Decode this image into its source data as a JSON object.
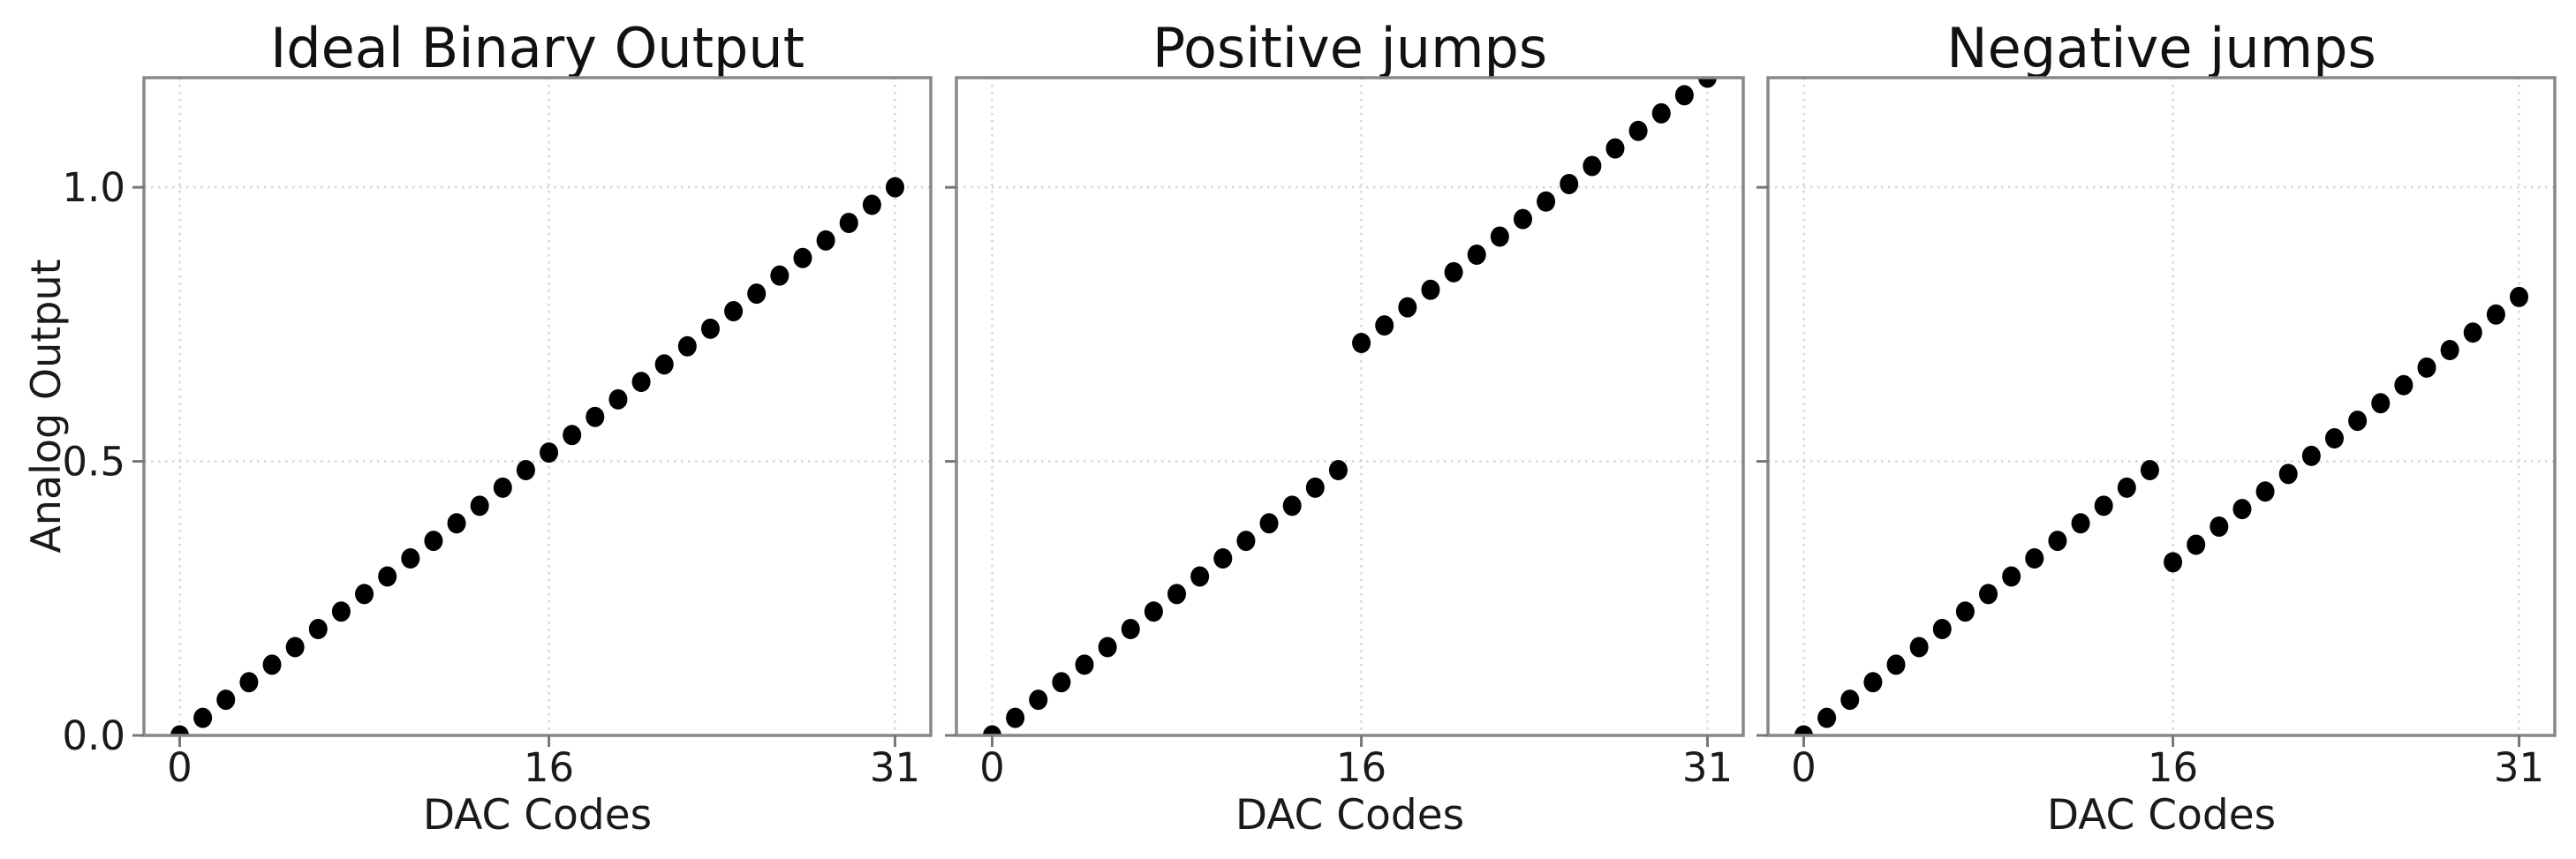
{
  "figure": {
    "ylabel": "Analog Output",
    "colors": {
      "background": "#ffffff",
      "text": "#1a1a1a",
      "spine": "#888888",
      "grid": "#d6d6d6",
      "tick": "#777777",
      "marker": "#000000"
    }
  },
  "chart_data": [
    {
      "type": "scatter",
      "title": "Ideal Binary Output",
      "xlabel": "DAC Codes",
      "ylabel": "Analog Output",
      "x": [
        0,
        1,
        2,
        3,
        4,
        5,
        6,
        7,
        8,
        9,
        10,
        11,
        12,
        13,
        14,
        15,
        16,
        17,
        18,
        19,
        20,
        21,
        22,
        23,
        24,
        25,
        26,
        27,
        28,
        29,
        30,
        31
      ],
      "y": [
        0.0,
        0.032,
        0.065,
        0.097,
        0.129,
        0.161,
        0.194,
        0.226,
        0.258,
        0.29,
        0.323,
        0.355,
        0.387,
        0.419,
        0.452,
        0.484,
        0.516,
        0.548,
        0.581,
        0.613,
        0.645,
        0.677,
        0.71,
        0.742,
        0.774,
        0.806,
        0.839,
        0.871,
        0.903,
        0.935,
        0.968,
        1.0
      ],
      "xlim": [
        -1.55,
        32.55
      ],
      "ylim": [
        0,
        1.2
      ],
      "xticks": [
        0,
        16,
        31
      ],
      "xtick_labels": [
        "0",
        "16",
        "31"
      ],
      "yticks": [
        0.0,
        0.5,
        1.0
      ],
      "ytick_labels": [
        "0.0",
        "0.5",
        "1.0"
      ],
      "show_ytick_labels": true,
      "grid": true,
      "marker": "circle"
    },
    {
      "type": "scatter",
      "title": "Positive jumps",
      "xlabel": "DAC Codes",
      "x": [
        0,
        1,
        2,
        3,
        4,
        5,
        6,
        7,
        8,
        9,
        10,
        11,
        12,
        13,
        14,
        15,
        16,
        17,
        18,
        19,
        20,
        21,
        22,
        23,
        24,
        25,
        26,
        27,
        28,
        29,
        30,
        31
      ],
      "y": [
        0.0,
        0.032,
        0.065,
        0.097,
        0.129,
        0.161,
        0.194,
        0.226,
        0.258,
        0.29,
        0.323,
        0.355,
        0.387,
        0.419,
        0.452,
        0.484,
        0.716,
        0.748,
        0.781,
        0.813,
        0.845,
        0.877,
        0.91,
        0.942,
        0.974,
        1.006,
        1.039,
        1.071,
        1.103,
        1.135,
        1.168,
        1.2
      ],
      "xlim": [
        -1.55,
        32.55
      ],
      "ylim": [
        0,
        1.2
      ],
      "xticks": [
        0,
        16,
        31
      ],
      "xtick_labels": [
        "0",
        "16",
        "31"
      ],
      "yticks": [
        0.0,
        0.5,
        1.0
      ],
      "ytick_labels": [
        "0.0",
        "0.5",
        "1.0"
      ],
      "show_ytick_labels": false,
      "grid": true,
      "marker": "circle"
    },
    {
      "type": "scatter",
      "title": "Negative jumps",
      "xlabel": "DAC Codes",
      "x": [
        0,
        1,
        2,
        3,
        4,
        5,
        6,
        7,
        8,
        9,
        10,
        11,
        12,
        13,
        14,
        15,
        16,
        17,
        18,
        19,
        20,
        21,
        22,
        23,
        24,
        25,
        26,
        27,
        28,
        29,
        30,
        31
      ],
      "y": [
        0.0,
        0.032,
        0.065,
        0.097,
        0.129,
        0.161,
        0.194,
        0.226,
        0.258,
        0.29,
        0.323,
        0.355,
        0.387,
        0.419,
        0.452,
        0.484,
        0.316,
        0.348,
        0.381,
        0.413,
        0.445,
        0.477,
        0.51,
        0.542,
        0.574,
        0.606,
        0.639,
        0.671,
        0.703,
        0.735,
        0.768,
        0.8
      ],
      "xlim": [
        -1.55,
        32.55
      ],
      "ylim": [
        0,
        1.2
      ],
      "xticks": [
        0,
        16,
        31
      ],
      "xtick_labels": [
        "0",
        "16",
        "31"
      ],
      "yticks": [
        0.0,
        0.5,
        1.0
      ],
      "ytick_labels": [
        "0.0",
        "0.5",
        "1.0"
      ],
      "show_ytick_labels": false,
      "grid": true,
      "marker": "circle"
    }
  ]
}
